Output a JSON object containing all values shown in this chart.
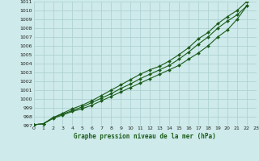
{
  "title": "Graphe pression niveau de la mer (hPa)",
  "xlim": [
    0,
    23
  ],
  "ylim": [
    997,
    1011
  ],
  "xticks": [
    0,
    1,
    2,
    3,
    4,
    5,
    6,
    7,
    8,
    9,
    10,
    11,
    12,
    13,
    14,
    15,
    16,
    17,
    18,
    19,
    20,
    21,
    22,
    23
  ],
  "yticks": [
    997,
    998,
    999,
    1000,
    1001,
    1002,
    1003,
    1004,
    1005,
    1006,
    1007,
    1008,
    1009,
    1010,
    1011
  ],
  "background_color": "#ceeaea",
  "grid_color": "#aacece",
  "line_color": "#1a5c1a",
  "marker": "D",
  "marker_size": 2.0,
  "line_width": 0.8,
  "series": [
    [
      997.1,
      997.2,
      997.8,
      998.2,
      998.6,
      998.9,
      999.3,
      999.8,
      1000.3,
      1000.8,
      1001.3,
      1001.8,
      1002.3,
      1002.8,
      1003.3,
      1003.8,
      1004.5,
      1005.2,
      1006.0,
      1007.0,
      1007.8,
      1009.0,
      1010.5
    ],
    [
      997.1,
      997.2,
      997.9,
      998.3,
      998.7,
      999.1,
      999.6,
      1000.1,
      1000.6,
      1001.2,
      1001.7,
      1002.3,
      1002.8,
      1003.3,
      1003.8,
      1004.5,
      1005.3,
      1006.2,
      1007.0,
      1008.0,
      1008.8,
      1009.5,
      1010.5
    ],
    [
      997.1,
      997.2,
      997.9,
      998.4,
      998.9,
      999.3,
      999.8,
      1000.4,
      1001.0,
      1001.6,
      1002.2,
      1002.8,
      1003.3,
      1003.7,
      1004.3,
      1005.0,
      1005.8,
      1006.8,
      1007.5,
      1008.5,
      1009.3,
      1010.0,
      1011.0
    ]
  ],
  "series_x": [
    0,
    1,
    2,
    3,
    4,
    5,
    6,
    7,
    8,
    9,
    10,
    11,
    12,
    13,
    14,
    15,
    16,
    17,
    18,
    19,
    20,
    21,
    22
  ]
}
